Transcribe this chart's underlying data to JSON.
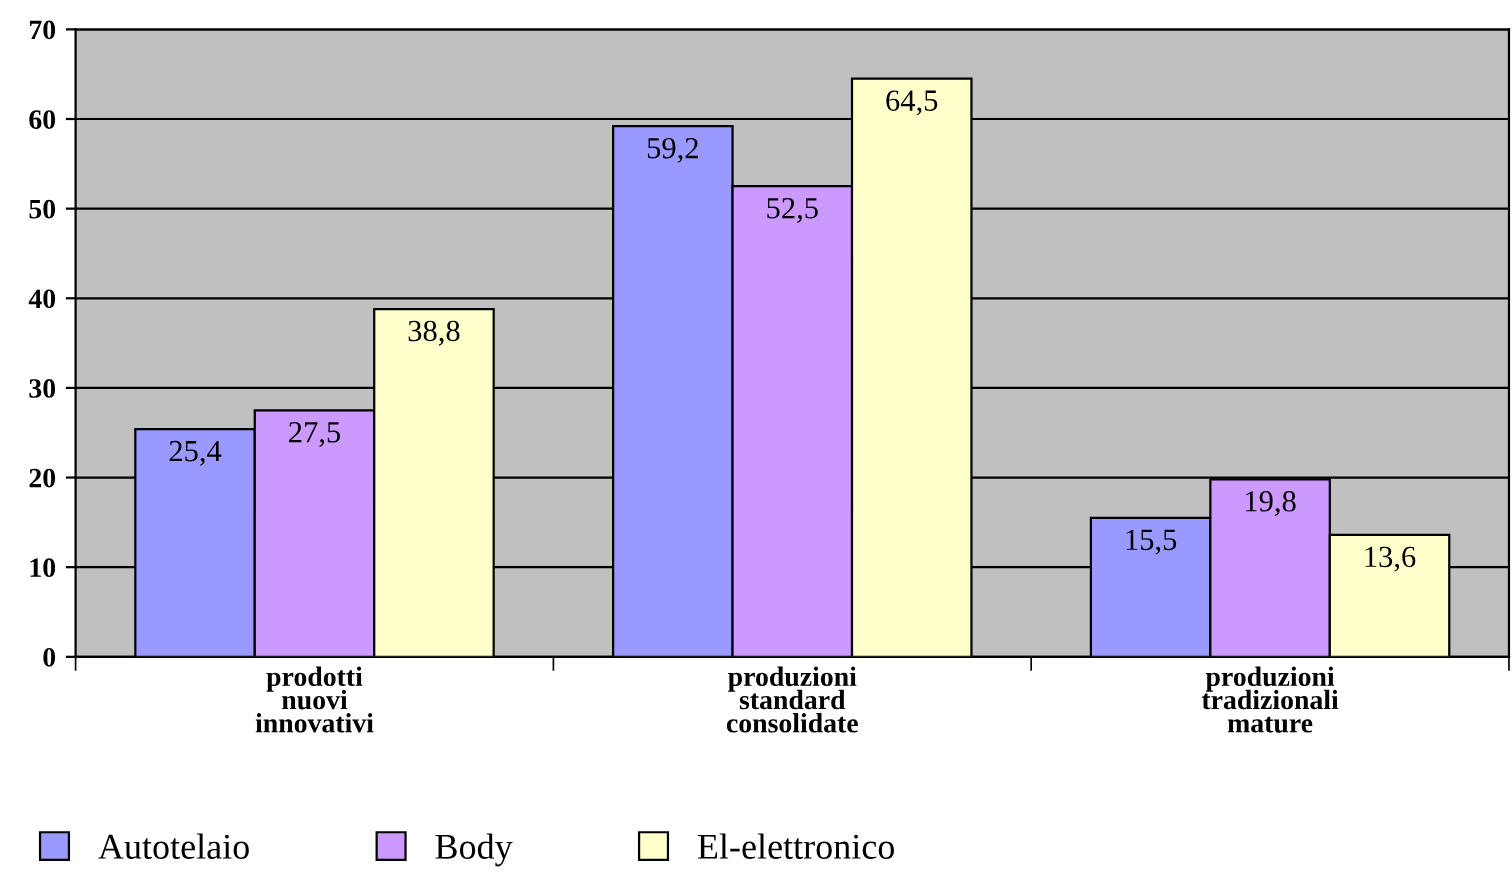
{
  "chart_data": {
    "type": "bar",
    "categories": [
      "prodotti\nnuovi\ninnovativi",
      "produzioni\nstandard\nconsolidate",
      "produzioni\ntradizionali\nmature"
    ],
    "series": [
      {
        "name": "Autotelaio",
        "color": "#9999ff",
        "values": [
          25.4,
          59.2,
          15.5
        ],
        "value_labels": [
          "25,4",
          "59,2",
          "15,5"
        ]
      },
      {
        "name": "Body",
        "color": "#cc99ff",
        "values": [
          27.5,
          52.5,
          19.8
        ],
        "value_labels": [
          "27,5",
          "52,5",
          "19,8"
        ]
      },
      {
        "name": "El-elettronico",
        "color": "#ffffcc",
        "values": [
          38.8,
          64.5,
          13.6
        ],
        "value_labels": [
          "38,8",
          "64,5",
          "13,6"
        ]
      }
    ],
    "ylim": [
      0,
      70
    ],
    "yticks": [
      0,
      10,
      20,
      30,
      40,
      50,
      60,
      70
    ],
    "grid": "y",
    "legend": "bottom left"
  }
}
